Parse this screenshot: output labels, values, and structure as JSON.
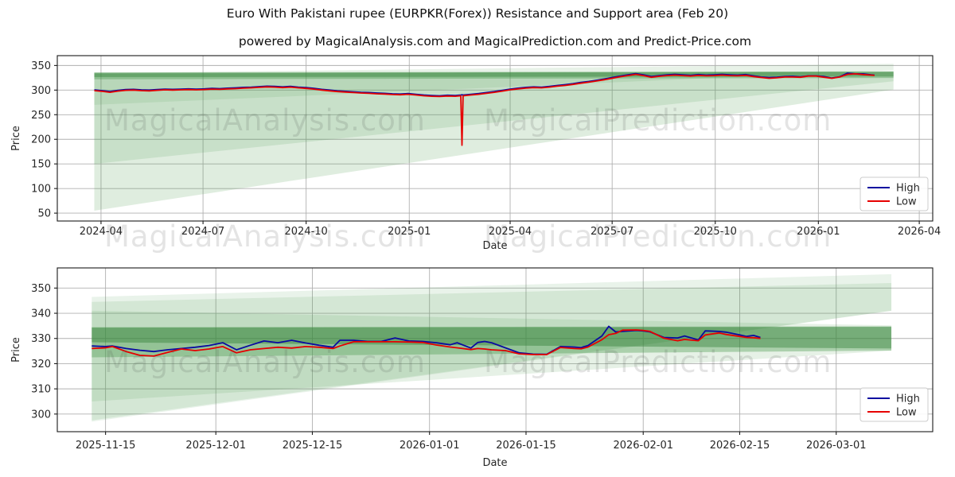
{
  "figure": {
    "title": "Euro With Pakistani rupee (EURPKR(Forex)) Resistance and Support area (Feb 20)",
    "subtitle": "powered by MagicalAnalysis.com and MagicalPrediction.com and Predict-Price.com",
    "watermarks": {
      "left": "MagicalAnalysis.com",
      "right": "MagicalPrediction.com"
    }
  },
  "chart_data": [
    {
      "type": "line",
      "name": "full-history",
      "xlabel": "Date",
      "ylabel": "Price",
      "xlim": [
        "2024-02-22",
        "2026-04-13"
      ],
      "ylim": [
        34,
        370
      ],
      "yticks": [
        50,
        100,
        150,
        200,
        250,
        300,
        350
      ],
      "xticks": [
        {
          "date": "2024-04-01",
          "label": "2024-04"
        },
        {
          "date": "2024-07-01",
          "label": "2024-07"
        },
        {
          "date": "2024-10-01",
          "label": "2024-10"
        },
        {
          "date": "2025-01-01",
          "label": "2025-01"
        },
        {
          "date": "2025-04-01",
          "label": "2025-04"
        },
        {
          "date": "2025-07-01",
          "label": "2025-07"
        },
        {
          "date": "2025-10-01",
          "label": "2025-10"
        },
        {
          "date": "2026-01-01",
          "label": "2026-01"
        },
        {
          "date": "2026-04-01",
          "label": "2026-04"
        }
      ],
      "grid": true,
      "legend": {
        "position": "lower right",
        "entries": [
          "High",
          "Low"
        ]
      },
      "series": [
        {
          "name": "High",
          "color": "#0a0aa0"
        },
        {
          "name": "Low",
          "color": "#e60000"
        }
      ],
      "points": [
        [
          "2024-03-26",
          300.5,
          299
        ],
        [
          "2024-04-02",
          299,
          297.5
        ],
        [
          "2024-04-09",
          297,
          295.5
        ],
        [
          "2024-04-16",
          299.5,
          298
        ],
        [
          "2024-04-23",
          301,
          299.5
        ],
        [
          "2024-04-30",
          301.5,
          300
        ],
        [
          "2024-05-07",
          300.5,
          299
        ],
        [
          "2024-05-14",
          300,
          298.5
        ],
        [
          "2024-05-21",
          301,
          299.5
        ],
        [
          "2024-05-28",
          302,
          300.5
        ],
        [
          "2024-06-04",
          301.5,
          300
        ],
        [
          "2024-06-11",
          302,
          300.5
        ],
        [
          "2024-06-18",
          302.5,
          301
        ],
        [
          "2024-06-25",
          302,
          300.5
        ],
        [
          "2024-07-02",
          302.5,
          301
        ],
        [
          "2024-07-09",
          303.5,
          302
        ],
        [
          "2024-07-16",
          303,
          301.5
        ],
        [
          "2024-07-23",
          304,
          302.5
        ],
        [
          "2024-07-30",
          304.5,
          303
        ],
        [
          "2024-08-06",
          305.5,
          304
        ],
        [
          "2024-08-13",
          306,
          304.5
        ],
        [
          "2024-08-20",
          307,
          305.5
        ],
        [
          "2024-08-27",
          308,
          306.5
        ],
        [
          "2024-09-03",
          307.5,
          306
        ],
        [
          "2024-09-10",
          306.5,
          305
        ],
        [
          "2024-09-17",
          307.5,
          306
        ],
        [
          "2024-09-24",
          306,
          304.5
        ],
        [
          "2024-10-01",
          305,
          303.5
        ],
        [
          "2024-10-08",
          303.5,
          302
        ],
        [
          "2024-10-15",
          301.5,
          300
        ],
        [
          "2024-10-22",
          300,
          298.5
        ],
        [
          "2024-10-29",
          298.5,
          297
        ],
        [
          "2024-11-05",
          297.5,
          296
        ],
        [
          "2024-11-12",
          296.5,
          295
        ],
        [
          "2024-11-19",
          295.5,
          294
        ],
        [
          "2024-11-26",
          295,
          293.5
        ],
        [
          "2024-12-03",
          294,
          292.5
        ],
        [
          "2024-12-10",
          293.5,
          292
        ],
        [
          "2024-12-17",
          292.5,
          291
        ],
        [
          "2024-12-24",
          292,
          290.5
        ],
        [
          "2024-12-31",
          293,
          291.5
        ],
        [
          "2025-01-07",
          291.5,
          290
        ],
        [
          "2025-01-14",
          290,
          288.5
        ],
        [
          "2025-01-21",
          289,
          287.5
        ],
        [
          "2025-01-28",
          288.5,
          287
        ],
        [
          "2025-02-04",
          289.5,
          288
        ],
        [
          "2025-02-11",
          289,
          287.5
        ],
        [
          "2025-02-16",
          290,
          288.5
        ],
        [
          "2025-02-17",
          290.5,
          188
        ],
        [
          "2025-02-18",
          290,
          288.5
        ],
        [
          "2025-02-25",
          291.5,
          290
        ],
        [
          "2025-03-04",
          293,
          291.5
        ],
        [
          "2025-03-11",
          295,
          293.5
        ],
        [
          "2025-03-18",
          297,
          295.5
        ],
        [
          "2025-03-25",
          299.5,
          298
        ],
        [
          "2025-04-01",
          302,
          300.5
        ],
        [
          "2025-04-08",
          304,
          302.5
        ],
        [
          "2025-04-15",
          305.5,
          304
        ],
        [
          "2025-04-22",
          306.5,
          305
        ],
        [
          "2025-04-29",
          306,
          304.5
        ],
        [
          "2025-05-06",
          307.5,
          306
        ],
        [
          "2025-05-13",
          309.5,
          308
        ],
        [
          "2025-05-20",
          311,
          309.5
        ],
        [
          "2025-05-27",
          313,
          311.5
        ],
        [
          "2025-06-03",
          315.5,
          314
        ],
        [
          "2025-06-10",
          317.5,
          316
        ],
        [
          "2025-06-17",
          320,
          318.5
        ],
        [
          "2025-06-24",
          322.5,
          321
        ],
        [
          "2025-07-01",
          325.5,
          324
        ],
        [
          "2025-07-08",
          328.5,
          327
        ],
        [
          "2025-07-15",
          331,
          329.5
        ],
        [
          "2025-07-22",
          333.5,
          332
        ],
        [
          "2025-07-29",
          331,
          329.5
        ],
        [
          "2025-08-05",
          327.5,
          326
        ],
        [
          "2025-08-12",
          329.5,
          328
        ],
        [
          "2025-08-19",
          331,
          329.5
        ],
        [
          "2025-08-26",
          332,
          330.5
        ],
        [
          "2025-09-02",
          331,
          329.5
        ],
        [
          "2025-09-09",
          330,
          328.5
        ],
        [
          "2025-09-16",
          331.5,
          330
        ],
        [
          "2025-09-23",
          330.5,
          329
        ],
        [
          "2025-09-30",
          331,
          329.5
        ],
        [
          "2025-10-07",
          332,
          330.5
        ],
        [
          "2025-10-14",
          331,
          329.5
        ],
        [
          "2025-10-21",
          330.5,
          329
        ],
        [
          "2025-10-28",
          331.5,
          330
        ],
        [
          "2025-11-04",
          329,
          327.5
        ],
        [
          "2025-11-11",
          326.5,
          325.5
        ],
        [
          "2025-11-18",
          325.5,
          324
        ],
        [
          "2025-11-25",
          326,
          325
        ],
        [
          "2025-12-02",
          327.5,
          326.5
        ],
        [
          "2025-12-09",
          328,
          326.5
        ],
        [
          "2025-12-16",
          327,
          326
        ],
        [
          "2025-12-23",
          329,
          328.5
        ],
        [
          "2025-12-30",
          329,
          328.5
        ],
        [
          "2026-01-06",
          327.5,
          326
        ],
        [
          "2026-01-13",
          324.5,
          324
        ],
        [
          "2026-01-20",
          327,
          326.5
        ],
        [
          "2026-01-27",
          334.5,
          332
        ],
        [
          "2026-02-03",
          333,
          333
        ],
        [
          "2026-02-10",
          333,
          331.5
        ],
        [
          "2026-02-17",
          331,
          330.5
        ],
        [
          "2026-02-20",
          330.5,
          330
        ]
      ],
      "bands": [
        {
          "x": [
            "2024-03-26",
            "2026-03-09"
          ],
          "top": [
            333,
            337
          ],
          "bottom": [
            55,
            301
          ],
          "color": "#4c9c50",
          "alpha": 0.18
        },
        {
          "x": [
            "2024-03-26",
            "2026-03-09"
          ],
          "top": [
            334.5,
            353.5
          ],
          "bottom": [
            270,
            340.5
          ],
          "color": "#4c9c50",
          "alpha": 0.13
        },
        {
          "x": [
            "2024-03-26",
            "2026-03-09"
          ],
          "top": [
            333.5,
            338.5
          ],
          "bottom": [
            150,
            318
          ],
          "color": "#4c9c50",
          "alpha": 0.15
        },
        {
          "x": [
            "2024-03-26",
            "2026-03-09"
          ],
          "top": [
            336,
            338
          ],
          "bottom": [
            322,
            324.5
          ],
          "color": "#4c9c50",
          "alpha": 0.4
        },
        {
          "x": [
            "2024-03-26",
            "2026-03-09"
          ],
          "top": [
            335,
            337
          ],
          "bottom": [
            326.5,
            327.5
          ],
          "color": "#2e7d32",
          "alpha": 0.4
        }
      ]
    },
    {
      "type": "line",
      "name": "recent-zoom",
      "xlabel": "Date",
      "ylabel": "Price",
      "xlim": [
        "2025-11-08",
        "2026-03-15"
      ],
      "ylim": [
        293,
        358
      ],
      "yticks": [
        300,
        310,
        320,
        330,
        340,
        350
      ],
      "xticks": [
        {
          "date": "2025-11-15",
          "label": "2025-11-15"
        },
        {
          "date": "2025-12-01",
          "label": "2025-12-01"
        },
        {
          "date": "2025-12-15",
          "label": "2025-12-15"
        },
        {
          "date": "2026-01-01",
          "label": "2026-01-01"
        },
        {
          "date": "2026-01-15",
          "label": "2026-01-15"
        },
        {
          "date": "2026-02-01",
          "label": "2026-02-01"
        },
        {
          "date": "2026-02-15",
          "label": "2026-02-15"
        },
        {
          "date": "2026-03-01",
          "label": "2026-03-01"
        }
      ],
      "grid": true,
      "legend": {
        "position": "lower right",
        "entries": [
          "High",
          "Low"
        ]
      },
      "series": [
        {
          "name": "High",
          "color": "#0a0aa0"
        },
        {
          "name": "Low",
          "color": "#e60000"
        }
      ],
      "points": [
        [
          "2025-11-13",
          327,
          326
        ],
        [
          "2025-11-15",
          326.8,
          326.3
        ],
        [
          "2025-11-16",
          327,
          326.8
        ],
        [
          "2025-11-18",
          326,
          324.8
        ],
        [
          "2025-11-20",
          325.3,
          323.3
        ],
        [
          "2025-11-22",
          324.8,
          323
        ],
        [
          "2025-11-24",
          325.5,
          324.5
        ],
        [
          "2025-11-26",
          326,
          325.8
        ],
        [
          "2025-11-28",
          326.5,
          325.2
        ],
        [
          "2025-11-30",
          327.2,
          325.8
        ],
        [
          "2025-12-02",
          328.3,
          326.8
        ],
        [
          "2025-12-04",
          325.5,
          324.3
        ],
        [
          "2025-12-06",
          327.3,
          325.5
        ],
        [
          "2025-12-08",
          329,
          326
        ],
        [
          "2025-12-10",
          328.3,
          326.5
        ],
        [
          "2025-12-12",
          329.3,
          326.2
        ],
        [
          "2025-12-14",
          328.2,
          326.8
        ],
        [
          "2025-12-16",
          327.3,
          326.5
        ],
        [
          "2025-12-18",
          326.5,
          326
        ],
        [
          "2025-12-19",
          329.3,
          327
        ],
        [
          "2025-12-21",
          329.3,
          328.7
        ],
        [
          "2025-12-23",
          328.8,
          328.7
        ],
        [
          "2025-12-25",
          328.8,
          328.7
        ],
        [
          "2025-12-27",
          330.2,
          328.7
        ],
        [
          "2025-12-29",
          329,
          328.6
        ],
        [
          "2025-12-31",
          328.8,
          328.4
        ],
        [
          "2026-01-02",
          328.3,
          327.4
        ],
        [
          "2026-01-04",
          327.5,
          326.6
        ],
        [
          "2026-01-05",
          328.3,
          326.3
        ],
        [
          "2026-01-07",
          326.2,
          325.6
        ],
        [
          "2026-01-08",
          328.4,
          326
        ],
        [
          "2026-01-09",
          328.8,
          325.8
        ],
        [
          "2026-01-10",
          328.3,
          325.5
        ],
        [
          "2026-01-12",
          326.3,
          325.2
        ],
        [
          "2026-01-14",
          324.3,
          323.9
        ],
        [
          "2026-01-16",
          323.8,
          323.6
        ],
        [
          "2026-01-18",
          323.7,
          323.6
        ],
        [
          "2026-01-20",
          326.8,
          326.4
        ],
        [
          "2026-01-22",
          326.6,
          326
        ],
        [
          "2026-01-23",
          326.4,
          325.9
        ],
        [
          "2026-01-24",
          327.2,
          326.6
        ],
        [
          "2026-01-26",
          331,
          329.5
        ],
        [
          "2026-01-27",
          334.8,
          331.5
        ],
        [
          "2026-01-28",
          332.6,
          332
        ],
        [
          "2026-01-29",
          332.8,
          333.3
        ],
        [
          "2026-01-31",
          333.2,
          333.4
        ],
        [
          "2026-02-01",
          333,
          333.2
        ],
        [
          "2026-02-02",
          332.6,
          332.8
        ],
        [
          "2026-02-04",
          330.4,
          330.1
        ],
        [
          "2026-02-06",
          330.2,
          329.1
        ],
        [
          "2026-02-07",
          331,
          329.6
        ],
        [
          "2026-02-09",
          329.4,
          329.1
        ],
        [
          "2026-02-10",
          333,
          331.4
        ],
        [
          "2026-02-12",
          332.8,
          332.2
        ],
        [
          "2026-02-13",
          332.5,
          331.6
        ],
        [
          "2026-02-15",
          331.4,
          330.8
        ],
        [
          "2026-02-16",
          330.8,
          330.4
        ],
        [
          "2026-02-17",
          331.2,
          330.3
        ],
        [
          "2026-02-18",
          330.4,
          330
        ]
      ],
      "bands": [
        {
          "x": [
            "2025-11-13",
            "2026-03-09"
          ],
          "top": [
            346.5,
            355.5
          ],
          "bottom": [
            297,
            341
          ],
          "color": "#4c9c50",
          "alpha": 0.12
        },
        {
          "x": [
            "2025-11-13",
            "2026-03-09"
          ],
          "top": [
            344.5,
            352
          ],
          "bottom": [
            297.5,
            341
          ],
          "color": "#4c9c50",
          "alpha": 0.13
        },
        {
          "x": [
            "2025-11-13",
            "2026-03-09"
          ],
          "top": [
            341,
            335.2
          ],
          "bottom": [
            305,
            325.2
          ],
          "color": "#4c9c50",
          "alpha": 0.14
        },
        {
          "x": [
            "2025-11-13",
            "2026-03-09"
          ],
          "top": [
            334.5,
            334.8
          ],
          "bottom": [
            322.5,
            325.2
          ],
          "color": "#4c9c50",
          "alpha": 0.38
        },
        {
          "x": [
            "2025-11-13",
            "2026-03-09"
          ],
          "top": [
            334.3,
            334.6
          ],
          "bottom": [
            328.5,
            326
          ],
          "color": "#2e7d32",
          "alpha": 0.42
        }
      ]
    }
  ]
}
